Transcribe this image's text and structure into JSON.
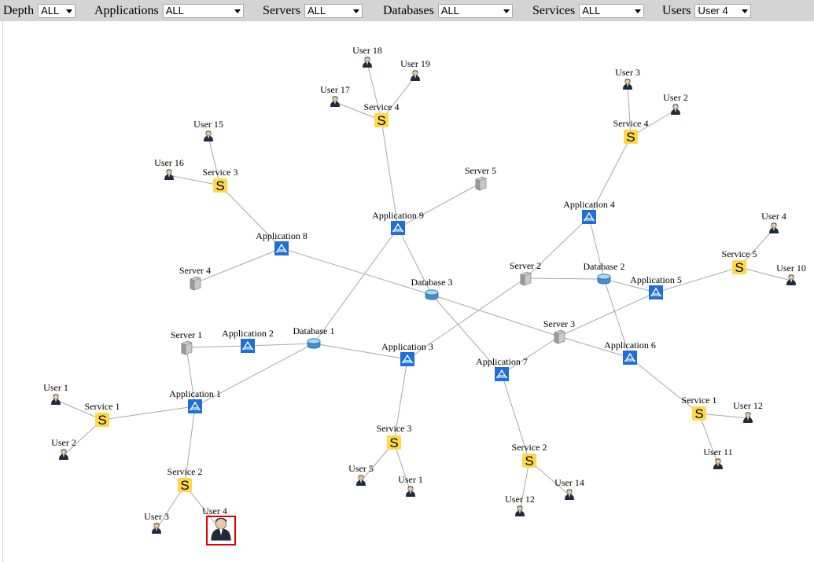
{
  "filters": [
    {
      "label": "Depth",
      "value": "ALL"
    },
    {
      "label": "Applications",
      "value": "ALL"
    },
    {
      "label": "Servers",
      "value": "ALL"
    },
    {
      "label": "Databases",
      "value": "ALL"
    },
    {
      "label": "Services",
      "value": "ALL"
    },
    {
      "label": "Users",
      "value": "User 4"
    }
  ],
  "nodes": [
    {
      "id": "a1",
      "type": "application",
      "label": "Application 1"
    },
    {
      "id": "a2",
      "type": "application",
      "label": "Application 2"
    },
    {
      "id": "a3",
      "type": "application",
      "label": "Application 3"
    },
    {
      "id": "a4",
      "type": "application",
      "label": "Application 4"
    },
    {
      "id": "a5",
      "type": "application",
      "label": "Application 5"
    },
    {
      "id": "a6",
      "type": "application",
      "label": "Application 6"
    },
    {
      "id": "a7",
      "type": "application",
      "label": "Application 7"
    },
    {
      "id": "a8",
      "type": "application",
      "label": "Application 8"
    },
    {
      "id": "a9",
      "type": "application",
      "label": "Application 9"
    },
    {
      "id": "srv1",
      "type": "server",
      "label": "Server 1"
    },
    {
      "id": "srv2",
      "type": "server",
      "label": "Server 2"
    },
    {
      "id": "srv3",
      "type": "server",
      "label": "Server 3"
    },
    {
      "id": "srv4",
      "type": "server",
      "label": "Server 4"
    },
    {
      "id": "srv5",
      "type": "server",
      "label": "Server 5"
    },
    {
      "id": "db1",
      "type": "database",
      "label": "Database 1"
    },
    {
      "id": "db2",
      "type": "database",
      "label": "Database 2"
    },
    {
      "id": "db3",
      "type": "database",
      "label": "Database 3"
    },
    {
      "id": "s1a",
      "type": "service",
      "label": "Service 1"
    },
    {
      "id": "s2a",
      "type": "service",
      "label": "Service 2"
    },
    {
      "id": "s3a",
      "type": "service",
      "label": "Service 3"
    },
    {
      "id": "s3b",
      "type": "service",
      "label": "Service 3"
    },
    {
      "id": "s4a",
      "type": "service",
      "label": "Service 4"
    },
    {
      "id": "s4b",
      "type": "service",
      "label": "Service 4"
    },
    {
      "id": "s5a",
      "type": "service",
      "label": "Service 5"
    },
    {
      "id": "s1b",
      "type": "service",
      "label": "Service 1"
    },
    {
      "id": "s2b",
      "type": "service",
      "label": "Service 2"
    },
    {
      "id": "u1a",
      "type": "user",
      "label": "User 1"
    },
    {
      "id": "u2a",
      "type": "user",
      "label": "User 2"
    },
    {
      "id": "u3a",
      "type": "user",
      "label": "User 3"
    },
    {
      "id": "u4a",
      "type": "user",
      "label": "User 4",
      "selected": true
    },
    {
      "id": "u5",
      "type": "user",
      "label": "User 5"
    },
    {
      "id": "u1b",
      "type": "user",
      "label": "User 1"
    },
    {
      "id": "u15",
      "type": "user",
      "label": "User 15"
    },
    {
      "id": "u16",
      "type": "user",
      "label": "User 16"
    },
    {
      "id": "u17",
      "type": "user",
      "label": "User 17"
    },
    {
      "id": "u18",
      "type": "user",
      "label": "User 18"
    },
    {
      "id": "u19",
      "type": "user",
      "label": "User 19"
    },
    {
      "id": "u3b",
      "type": "user",
      "label": "User 3"
    },
    {
      "id": "u2b",
      "type": "user",
      "label": "User 2"
    },
    {
      "id": "u4b",
      "type": "user",
      "label": "User 4"
    },
    {
      "id": "u10",
      "type": "user",
      "label": "User 10"
    },
    {
      "id": "u12a",
      "type": "user",
      "label": "User 12"
    },
    {
      "id": "u11",
      "type": "user",
      "label": "User 11"
    },
    {
      "id": "u12b",
      "type": "user",
      "label": "User 12"
    },
    {
      "id": "u14",
      "type": "user",
      "label": "User 14"
    }
  ],
  "edges": [
    [
      "a1",
      "srv1"
    ],
    [
      "srv1",
      "a2"
    ],
    [
      "a2",
      "db1"
    ],
    [
      "a1",
      "db1"
    ],
    [
      "db1",
      "a3"
    ],
    [
      "db1",
      "a9"
    ],
    [
      "a9",
      "srv5"
    ],
    [
      "a9",
      "db3"
    ],
    [
      "db3",
      "a7"
    ],
    [
      "db3",
      "a8"
    ],
    [
      "a8",
      "srv4"
    ],
    [
      "a8",
      "s3a"
    ],
    [
      "db3",
      "srv3"
    ],
    [
      "srv3",
      "a6"
    ],
    [
      "srv3",
      "a7"
    ],
    [
      "srv3",
      "a5"
    ],
    [
      "a3",
      "srv2"
    ],
    [
      "srv2",
      "a4"
    ],
    [
      "srv2",
      "db2"
    ],
    [
      "db2",
      "a4"
    ],
    [
      "db2",
      "a5"
    ],
    [
      "db2",
      "a6"
    ],
    [
      "a5",
      "s5a"
    ],
    [
      "a6",
      "s1b"
    ],
    [
      "a4",
      "s4b"
    ],
    [
      "a9",
      "s4a"
    ],
    [
      "a1",
      "s1a"
    ],
    [
      "a1",
      "s2a"
    ],
    [
      "a3",
      "s3b"
    ],
    [
      "a7",
      "s2b"
    ],
    [
      "s1a",
      "u1a"
    ],
    [
      "s1a",
      "u2a"
    ],
    [
      "s2a",
      "u3a"
    ],
    [
      "s2a",
      "u4a"
    ],
    [
      "s3b",
      "u5"
    ],
    [
      "s3b",
      "u1b"
    ],
    [
      "s3a",
      "u15"
    ],
    [
      "s3a",
      "u16"
    ],
    [
      "s4a",
      "u17"
    ],
    [
      "s4a",
      "u18"
    ],
    [
      "s4a",
      "u19"
    ],
    [
      "s4b",
      "u3b"
    ],
    [
      "s4b",
      "u2b"
    ],
    [
      "s5a",
      "u4b"
    ],
    [
      "s5a",
      "u10"
    ],
    [
      "s1b",
      "u12a"
    ],
    [
      "s1b",
      "u11"
    ],
    [
      "s2b",
      "u12b"
    ],
    [
      "s2b",
      "u14"
    ]
  ],
  "colors": {
    "application": "#1e6fd9",
    "service": "#ffd84a",
    "server": "#a0a0a0",
    "database": "#5aa9e6",
    "edge": "#a8a8a8",
    "selected": "#e00000",
    "toolbar": "#d4d4d4"
  }
}
